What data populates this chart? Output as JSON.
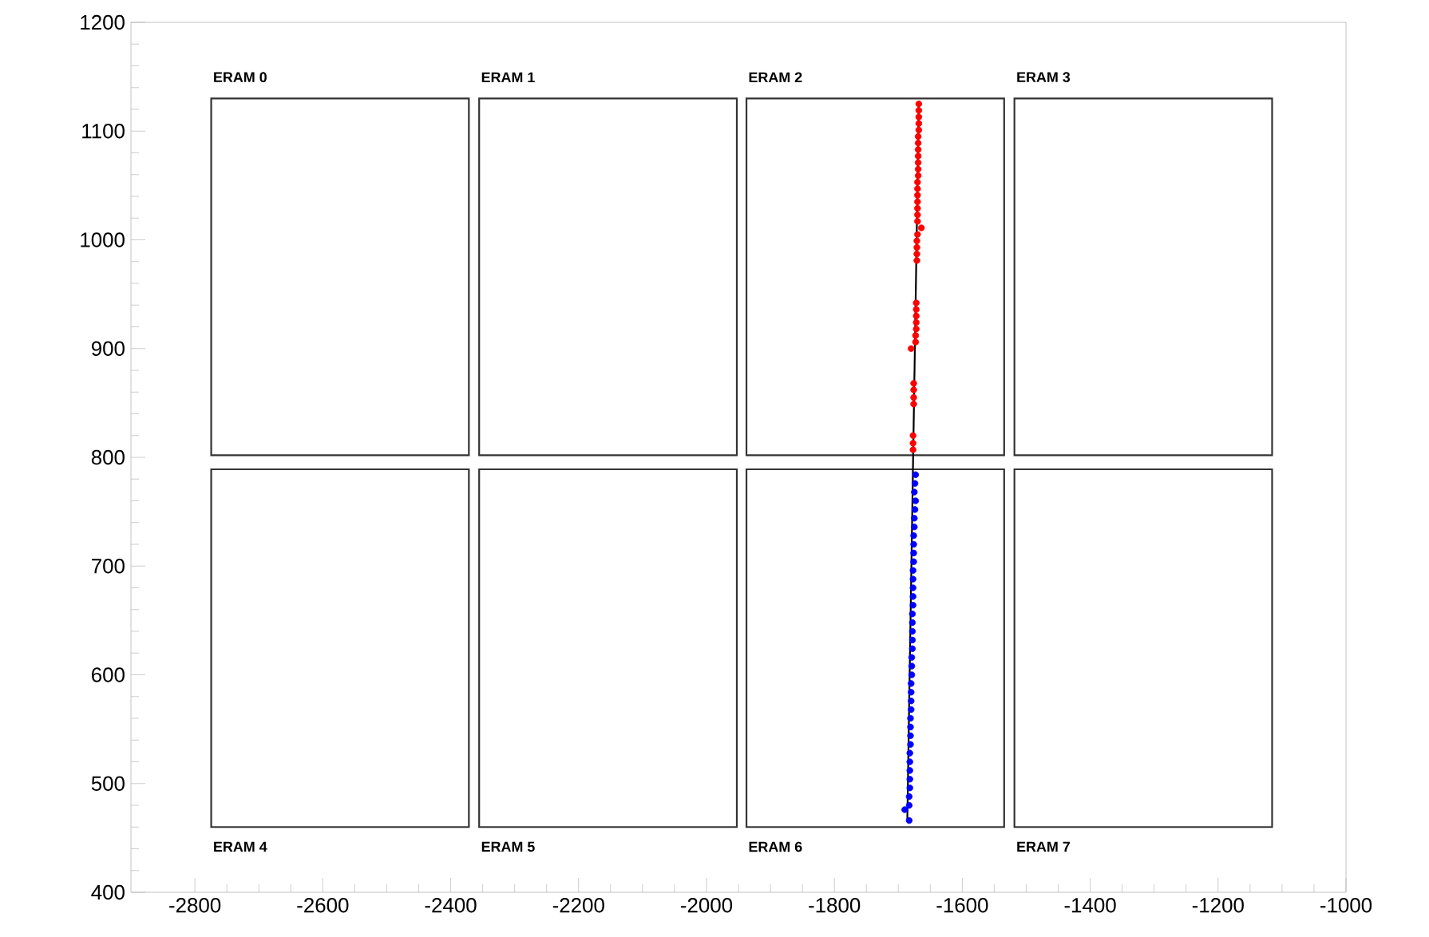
{
  "chart_data": {
    "type": "scatter",
    "xlim": [
      -2900,
      -1000
    ],
    "ylim": [
      400,
      1200
    ],
    "xticks": [
      -2800,
      -2600,
      -2400,
      -2200,
      -2000,
      -1800,
      -1600,
      -1400,
      -1200,
      -1000
    ],
    "yticks": [
      400,
      500,
      600,
      700,
      800,
      900,
      1000,
      1100,
      1200
    ],
    "grid": false,
    "series": [
      {
        "type": "bar",
        "color": "#333333",
        "x": [
          -2573,
          -2154,
          -1736,
          -1317
        ],
        "base": [
          802,
          802,
          802,
          802
        ],
        "values": [
          328,
          328,
          328,
          328
        ],
        "value_labels": [
          "ERAM 0",
          "ERAM 1",
          "ERAM 2",
          "ERAM 3"
        ]
      },
      {
        "type": "bar",
        "color": "#333333",
        "x": [
          -2573,
          -2154,
          -1736,
          -1317
        ],
        "base": [
          460,
          460,
          460,
          460
        ],
        "values": [
          329,
          329,
          329,
          329
        ],
        "value_labels": [
          "ERAM 4",
          "ERAM 5",
          "ERAM 6",
          "ERAM 7"
        ]
      },
      {
        "type": "line",
        "marker": "none",
        "color": "#000000",
        "x": [
          -1686,
          -1668
        ],
        "values": [
          465,
          1125
        ]
      },
      {
        "marker": "circle",
        "color": "#ff0000",
        "x": [
          -1668,
          -1668,
          -1668,
          -1668,
          -1668,
          -1669,
          -1669,
          -1669,
          -1669,
          -1669,
          -1669,
          -1669,
          -1670,
          -1670,
          -1670,
          -1670,
          -1670,
          -1670,
          -1670,
          -1664,
          -1670,
          -1671,
          -1671,
          -1671,
          -1671,
          -1672,
          -1672,
          -1672,
          -1672,
          -1672,
          -1673,
          -1673,
          -1680,
          -1676,
          -1676,
          -1676,
          -1676,
          -1677,
          -1677,
          -1677
        ],
        "values": [
          1125,
          1119,
          1113,
          1107,
          1101,
          1095,
          1089,
          1083,
          1077,
          1071,
          1065,
          1059,
          1053,
          1047,
          1041,
          1035,
          1029,
          1023,
          1017,
          1011,
          1005,
          999,
          993,
          987,
          981,
          942,
          936,
          930,
          924,
          918,
          912,
          906,
          900,
          868,
          862,
          855,
          849,
          820,
          813,
          807
        ]
      },
      {
        "marker": "circle",
        "color": "#0000ff",
        "x": [
          -1673,
          -1674,
          -1675,
          -1673,
          -1674,
          -1675,
          -1675,
          -1676,
          -1676,
          -1676,
          -1676,
          -1677,
          -1677,
          -1677,
          -1677,
          -1677,
          -1678,
          -1678,
          -1678,
          -1678,
          -1678,
          -1679,
          -1679,
          -1679,
          -1680,
          -1680,
          -1680,
          -1680,
          -1681,
          -1681,
          -1681,
          -1681,
          -1682,
          -1682,
          -1682,
          -1682,
          -1682,
          -1683,
          -1683,
          -1690,
          -1683
        ],
        "values": [
          784,
          776,
          768,
          760,
          752,
          744,
          736,
          728,
          720,
          712,
          704,
          696,
          688,
          680,
          672,
          664,
          656,
          648,
          640,
          632,
          624,
          616,
          608,
          600,
          592,
          584,
          576,
          568,
          560,
          552,
          544,
          536,
          528,
          520,
          512,
          504,
          496,
          488,
          480,
          476,
          466
        ]
      }
    ]
  }
}
